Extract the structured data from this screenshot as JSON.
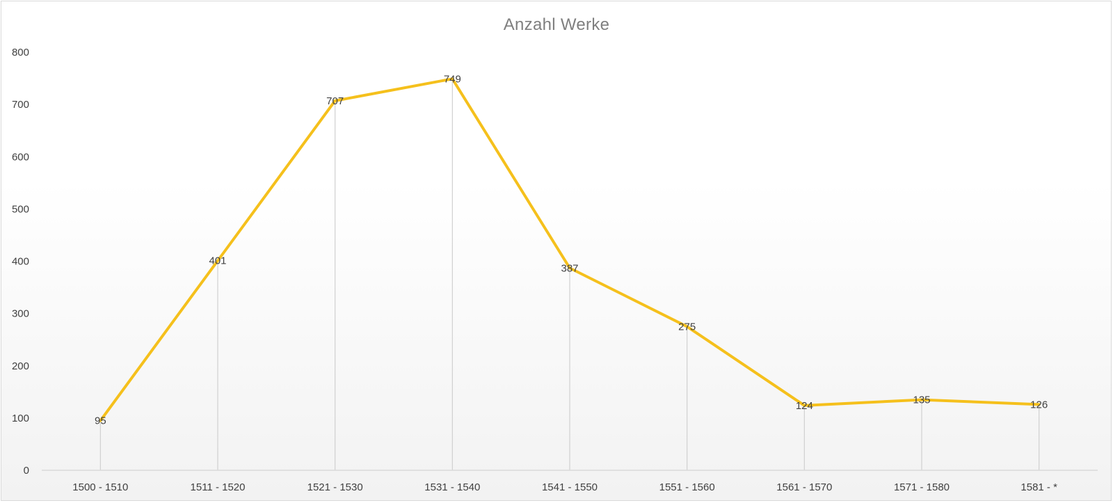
{
  "chart_data": {
    "type": "line",
    "title": "Anzahl Werke",
    "xlabel": "",
    "ylabel": "",
    "categories": [
      "1500 - 1510",
      "1511 - 1520",
      "1521 - 1530",
      "1531 - 1540",
      "1541 - 1550",
      "1551 - 1560",
      "1561 - 1570",
      "1571 - 1580",
      "1581 - *"
    ],
    "series": [
      {
        "values": [
          95,
          401,
          707,
          749,
          387,
          275,
          124,
          135,
          126
        ],
        "color": "#f5c01c"
      }
    ],
    "ylim": [
      0,
      800
    ],
    "yticks": [
      0,
      100,
      200,
      300,
      400,
      500,
      600,
      700,
      800
    ],
    "grid": false,
    "drop_lines": true,
    "data_labels": true,
    "legend": "none"
  }
}
